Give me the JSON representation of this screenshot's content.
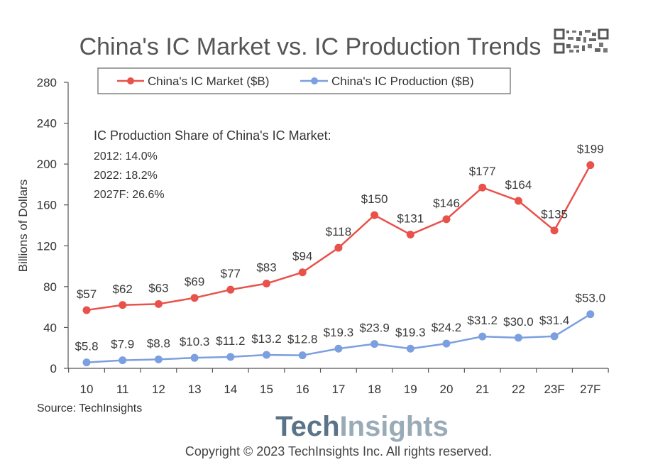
{
  "chart_data": {
    "type": "line",
    "title": "China's IC Market vs. IC Production Trends",
    "ylabel": "Billions of Dollars",
    "xlabel": "",
    "ylim": [
      0,
      280
    ],
    "yticks": [
      "0",
      "40",
      "80",
      "120",
      "160",
      "200",
      "240",
      "280"
    ],
    "categories": [
      "10",
      "11",
      "12",
      "13",
      "14",
      "15",
      "16",
      "17",
      "18",
      "19",
      "20",
      "21",
      "22",
      "23F",
      "27F"
    ],
    "legend_position": "top",
    "series": [
      {
        "name": "China's IC Market ($B)",
        "color": "#e8524a",
        "values": [
          57,
          62,
          63,
          69,
          77,
          83,
          94,
          118,
          150,
          131,
          146,
          177,
          164,
          135,
          199
        ],
        "labels": [
          "$57",
          "$62",
          "$63",
          "$69",
          "$77",
          "$83",
          "$94",
          "$118",
          "$150",
          "$131",
          "$146",
          "$177",
          "$164",
          "$135",
          "$199"
        ]
      },
      {
        "name": "China's IC Production ($B)",
        "color": "#7b9fdf",
        "values": [
          5.8,
          7.9,
          8.8,
          10.3,
          11.2,
          13.2,
          12.8,
          19.3,
          23.9,
          19.3,
          24.2,
          31.2,
          30.0,
          31.4,
          53.0
        ],
        "labels": [
          "$5.8",
          "$7.9",
          "$8.8",
          "$10.3",
          "$11.2",
          "$13.2",
          "$12.8",
          "$19.3",
          "$23.9",
          "$19.3",
          "$24.2",
          "$31.2",
          "$30.0",
          "$31.4",
          "$53.0"
        ]
      }
    ],
    "annotation": {
      "heading": "IC Production Share of China's IC Market:",
      "lines": [
        "2012: 14.0%",
        "2022: 18.2%",
        "2027F: 26.6%"
      ]
    }
  },
  "source": "Source: TechInsights",
  "brand": {
    "part1": "Tech",
    "part2": "Insights",
    "color1": "#5a7388",
    "color2": "#9aabb8"
  },
  "copyright": "Copyright © 2023 TechInsights Inc.  All rights reserved.",
  "qr_icon": "qr-code-icon"
}
